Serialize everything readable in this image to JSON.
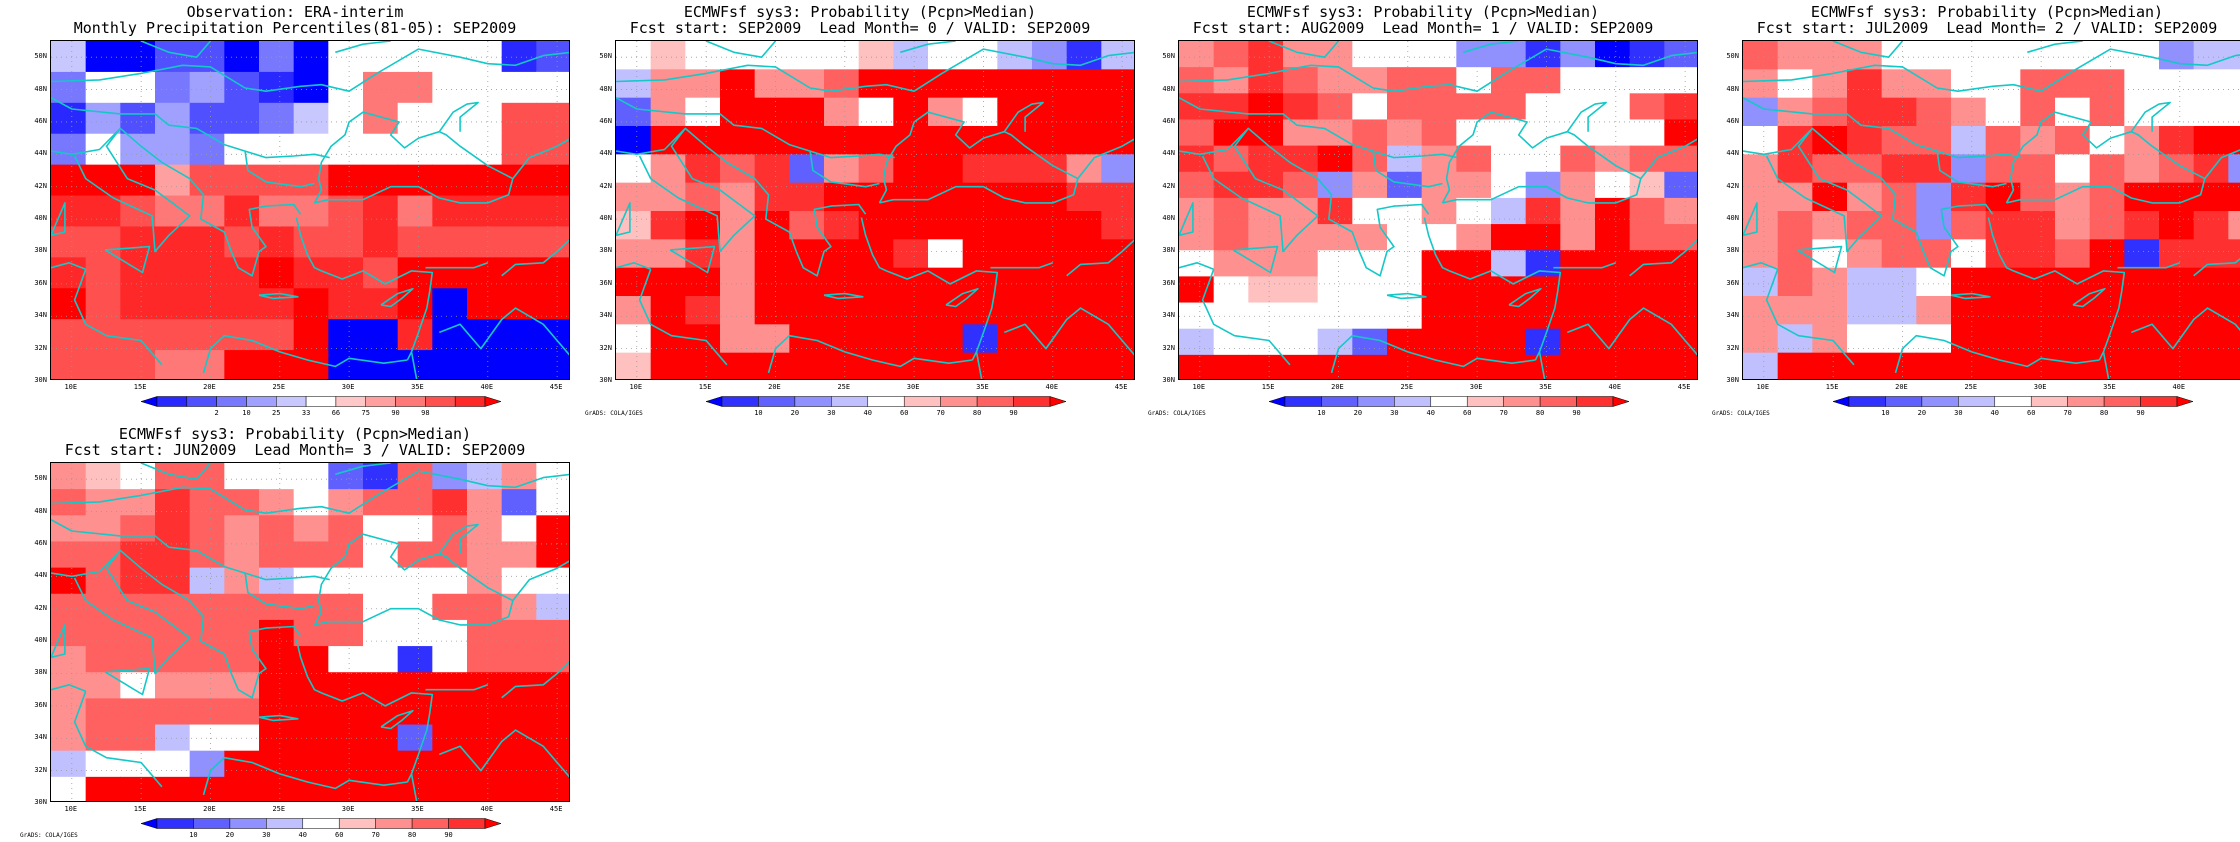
{
  "credit": "GrADS: COLA/IGES",
  "legends": {
    "percentile": {
      "colors": [
        "#0000ff",
        "#2828ff",
        "#5050ff",
        "#7878ff",
        "#a0a0ff",
        "#c8c8ff",
        "#ffffff",
        "#ffc8c8",
        "#ffa0a0",
        "#ff7878",
        "#ff5050",
        "#ff2828",
        "#ff0000"
      ],
      "labels": [
        "2",
        "10",
        "25",
        "33",
        "66",
        "75",
        "90",
        "98"
      ]
    },
    "probability": {
      "colors": [
        "#0000ff",
        "#3030ff",
        "#6060ff",
        "#9090ff",
        "#c0c0ff",
        "#ffffff",
        "#ffc0c0",
        "#ff9090",
        "#ff6060",
        "#ff3030",
        "#ff0000"
      ],
      "labels": [
        "10",
        "20",
        "30",
        "40",
        "60",
        "70",
        "80",
        "90"
      ]
    }
  },
  "axes": {
    "lon_labels": [
      "10E",
      "15E",
      "20E",
      "25E",
      "30E",
      "35E",
      "40E",
      "45E"
    ],
    "lon_values": [
      10,
      15,
      20,
      25,
      30,
      35,
      40,
      45
    ],
    "lat_labels": [
      "30N",
      "32N",
      "34N",
      "36N",
      "38N",
      "40N",
      "42N",
      "44N",
      "46N",
      "48N",
      "50N"
    ],
    "lat_values": [
      30,
      32,
      34,
      36,
      38,
      40,
      42,
      44,
      46,
      48,
      50
    ],
    "lon_range": [
      8.5,
      46
    ],
    "lat_range": [
      30,
      51
    ],
    "grid": "dotted"
  },
  "panels": [
    {
      "title1": "Observation: ERA-interim",
      "title2": "Monthly Precipitation Percentiles(81-05): SEP2009",
      "legend": "percentile",
      "show_credit": false,
      "cells": [
        [
          5,
          0,
          0,
          2,
          2,
          0,
          3,
          0,
          6,
          6,
          6,
          6,
          6,
          1,
          2
        ],
        [
          3,
          6,
          6,
          3,
          4,
          2,
          1,
          0,
          6,
          9,
          9,
          6,
          6,
          6,
          6
        ],
        [
          1,
          4,
          2,
          4,
          2,
          2,
          3,
          5,
          6,
          9,
          6,
          6,
          6,
          10,
          10
        ],
        [
          3,
          6,
          4,
          4,
          3,
          6,
          6,
          6,
          6,
          6,
          6,
          6,
          6,
          10,
          10
        ],
        [
          12,
          12,
          12,
          8,
          10,
          10,
          10,
          10,
          12,
          12,
          12,
          12,
          12,
          12,
          12
        ],
        [
          11,
          11,
          10,
          9,
          9,
          11,
          9,
          9,
          10,
          11,
          9,
          11,
          11,
          11,
          11
        ],
        [
          10,
          10,
          11,
          11,
          11,
          10,
          11,
          10,
          10,
          11,
          10,
          10,
          10,
          10,
          10
        ],
        [
          11,
          10,
          11,
          11,
          11,
          11,
          12,
          11,
          11,
          10,
          12,
          12,
          12,
          12,
          12
        ],
        [
          12,
          10,
          11,
          11,
          11,
          11,
          11,
          12,
          11,
          11,
          12,
          0,
          12,
          12,
          12
        ],
        [
          10,
          10,
          10,
          10,
          10,
          10,
          10,
          12,
          0,
          0,
          11,
          0,
          0,
          0,
          0
        ],
        [
          10,
          10,
          10,
          9,
          9,
          12,
          12,
          12,
          0,
          0,
          0,
          0,
          0,
          0,
          0
        ]
      ]
    },
    {
      "title1": "ECMWFsf sys3: Probability (Pcpn>Median)",
      "title2": "Fcst start: SEP2009  Lead Month= 0 / VALID: SEP2009",
      "legend": "probability",
      "show_credit": true,
      "cells": [
        [
          5,
          6,
          5,
          5,
          5,
          5,
          5,
          6,
          4,
          5,
          5,
          4,
          3,
          1,
          4
        ],
        [
          4,
          7,
          7,
          10,
          7,
          7,
          8,
          10,
          10,
          10,
          10,
          10,
          10,
          10,
          10
        ],
        [
          2,
          7,
          5,
          10,
          10,
          10,
          7,
          5,
          10,
          7,
          5,
          10,
          10,
          10,
          10
        ],
        [
          0,
          10,
          10,
          10,
          10,
          10,
          10,
          10,
          10,
          10,
          10,
          10,
          10,
          10,
          10
        ],
        [
          5,
          7,
          9,
          8,
          9,
          2,
          7,
          8,
          10,
          10,
          9,
          9,
          9,
          7,
          3
        ],
        [
          7,
          7,
          8,
          7,
          9,
          9,
          10,
          10,
          10,
          10,
          10,
          10,
          10,
          9,
          9
        ],
        [
          6,
          9,
          10,
          7,
          10,
          8,
          9,
          10,
          10,
          10,
          10,
          10,
          10,
          10,
          9
        ],
        [
          7,
          7,
          9,
          7,
          10,
          10,
          10,
          10,
          9,
          5,
          10,
          10,
          10,
          10,
          10
        ],
        [
          10,
          10,
          10,
          7,
          10,
          10,
          10,
          10,
          10,
          10,
          10,
          10,
          10,
          10,
          10
        ],
        [
          7,
          10,
          9,
          7,
          10,
          10,
          10,
          10,
          10,
          10,
          10,
          10,
          10,
          10,
          10
        ],
        [
          5,
          10,
          10,
          7,
          7,
          10,
          10,
          10,
          10,
          10,
          1,
          10,
          10,
          10,
          10
        ],
        [
          6,
          10,
          10,
          10,
          10,
          10,
          10,
          10,
          10,
          10,
          10,
          10,
          10,
          10,
          10
        ]
      ]
    },
    {
      "title1": "ECMWFsf sys3: Probability (Pcpn>Median)",
      "title2": "Fcst start: AUG2009  Lead Month= 1 / VALID: SEP2009",
      "legend": "probability",
      "show_credit": true,
      "cells": [
        [
          7,
          8,
          9,
          7,
          7,
          5,
          5,
          5,
          3,
          3,
          1,
          3,
          0,
          1,
          2
        ],
        [
          8,
          7,
          9,
          8,
          7,
          7,
          8,
          8,
          5,
          8,
          8,
          5,
          5,
          5,
          5
        ],
        [
          9,
          9,
          10,
          9,
          8,
          5,
          8,
          8,
          8,
          8,
          5,
          5,
          5,
          8,
          9
        ],
        [
          8,
          10,
          10,
          7,
          7,
          8,
          7,
          8,
          5,
          5,
          5,
          5,
          5,
          5,
          10
        ],
        [
          9,
          8,
          9,
          9,
          10,
          8,
          4,
          7,
          8,
          5,
          5,
          8,
          7,
          8,
          8
        ],
        [
          8,
          9,
          9,
          8,
          3,
          7,
          2,
          7,
          7,
          5,
          3,
          7,
          5,
          6,
          2
        ],
        [
          7,
          8,
          7,
          7,
          9,
          5,
          5,
          7,
          5,
          4,
          9,
          7,
          10,
          8,
          7
        ],
        [
          7,
          8,
          7,
          7,
          7,
          7,
          5,
          5,
          7,
          10,
          10,
          7,
          10,
          8,
          8
        ],
        [
          5,
          7,
          7,
          7,
          5,
          5,
          5,
          10,
          10,
          4,
          1,
          10,
          10,
          10,
          10
        ],
        [
          10,
          5,
          6,
          6,
          5,
          5,
          5,
          10,
          10,
          10,
          10,
          10,
          10,
          10,
          10
        ],
        [
          5,
          5,
          5,
          5,
          5,
          5,
          5,
          10,
          10,
          10,
          10,
          10,
          10,
          10,
          10
        ],
        [
          4,
          5,
          5,
          5,
          4,
          2,
          10,
          10,
          10,
          10,
          1,
          10,
          10,
          10,
          10
        ],
        [
          10,
          10,
          10,
          10,
          10,
          10,
          10,
          10,
          10,
          10,
          10,
          10,
          10,
          10,
          10
        ]
      ]
    },
    {
      "title1": "ECMWFsf sys3: Probability (Pcpn>Median)",
      "title2": "Fcst start: JUL2009  Lead Month= 2 / VALID: SEP2009",
      "legend": "probability",
      "show_credit": true,
      "cells": [
        [
          8,
          7,
          7,
          7,
          5,
          5,
          5,
          5,
          5,
          5,
          5,
          5,
          3,
          4,
          4
        ],
        [
          7,
          5,
          7,
          9,
          7,
          7,
          5,
          5,
          8,
          8,
          8,
          5,
          5,
          5,
          5
        ],
        [
          3,
          7,
          8,
          9,
          9,
          8,
          7,
          5,
          8,
          5,
          8,
          5,
          5,
          5,
          5
        ],
        [
          5,
          9,
          10,
          9,
          8,
          8,
          4,
          8,
          7,
          8,
          5,
          7,
          9,
          10,
          10
        ],
        [
          7,
          9,
          8,
          8,
          9,
          9,
          3,
          8,
          8,
          5,
          8,
          7,
          8,
          9,
          3
        ],
        [
          7,
          7,
          10,
          7,
          8,
          3,
          9,
          10,
          8,
          7,
          8,
          10,
          10,
          10,
          10
        ],
        [
          7,
          8,
          7,
          8,
          8,
          3,
          8,
          9,
          9,
          7,
          8,
          9,
          10,
          9,
          7
        ],
        [
          7,
          8,
          5,
          7,
          8,
          8,
          5,
          9,
          9,
          8,
          10,
          1,
          9,
          9,
          9
        ],
        [
          4,
          8,
          7,
          4,
          4,
          5,
          10,
          10,
          10,
          10,
          10,
          10,
          10,
          10,
          10
        ],
        [
          7,
          7,
          7,
          4,
          4,
          7,
          10,
          10,
          10,
          10,
          10,
          10,
          10,
          10,
          10
        ],
        [
          7,
          4,
          7,
          5,
          5,
          5,
          10,
          10,
          10,
          10,
          10,
          10,
          10,
          10,
          10
        ],
        [
          4,
          10,
          10,
          10,
          10,
          10,
          10,
          10,
          10,
          10,
          10,
          10,
          10,
          10,
          10
        ]
      ]
    },
    {
      "title1": "ECMWFsf sys3: Probability (Pcpn>Median)",
      "title2": "Fcst start: JUN2009  Lead Month= 3 / VALID: SEP2009",
      "legend": "probability",
      "show_credit": true,
      "cells": [
        [
          7,
          6,
          5,
          8,
          8,
          5,
          5,
          5,
          2,
          1,
          8,
          3,
          4,
          7,
          5
        ],
        [
          8,
          7,
          7,
          9,
          8,
          8,
          7,
          5,
          7,
          8,
          8,
          9,
          7,
          2,
          5
        ],
        [
          7,
          7,
          8,
          9,
          8,
          7,
          8,
          7,
          8,
          5,
          5,
          8,
          7,
          5,
          10
        ],
        [
          8,
          8,
          9,
          9,
          8,
          7,
          8,
          8,
          8,
          5,
          8,
          8,
          7,
          7,
          10
        ],
        [
          10,
          8,
          9,
          9,
          4,
          7,
          4,
          5,
          5,
          5,
          5,
          5,
          7,
          5,
          5
        ],
        [
          8,
          8,
          8,
          8,
          8,
          8,
          8,
          8,
          8,
          5,
          5,
          8,
          8,
          7,
          4
        ],
        [
          8,
          8,
          8,
          8,
          8,
          8,
          10,
          8,
          8,
          5,
          5,
          5,
          8,
          8,
          8
        ],
        [
          7,
          8,
          8,
          8,
          8,
          8,
          10,
          10,
          5,
          5,
          1,
          5,
          8,
          8,
          8
        ],
        [
          7,
          7,
          5,
          7,
          7,
          7,
          10,
          10,
          10,
          10,
          10,
          10,
          10,
          10,
          10
        ],
        [
          7,
          8,
          8,
          8,
          8,
          8,
          10,
          10,
          10,
          10,
          10,
          10,
          10,
          10,
          10
        ],
        [
          7,
          8,
          8,
          4,
          5,
          5,
          10,
          10,
          10,
          10,
          2,
          10,
          10,
          10,
          10
        ],
        [
          4,
          5,
          5,
          5,
          3,
          10,
          10,
          10,
          10,
          10,
          10,
          10,
          10,
          10,
          10
        ],
        [
          5,
          10,
          10,
          10,
          10,
          10,
          10,
          10,
          10,
          10,
          10,
          10,
          10,
          10,
          10
        ]
      ]
    }
  ]
}
